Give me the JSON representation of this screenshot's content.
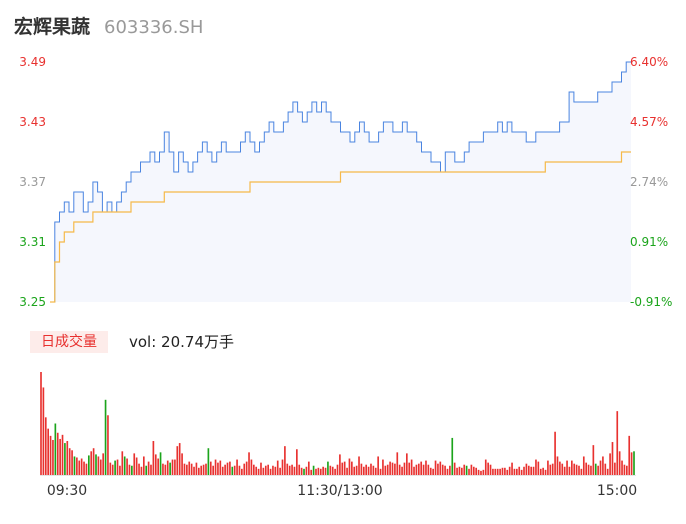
{
  "stock": {
    "name": "宏辉果蔬",
    "code": "603336.SH"
  },
  "volume_panel": {
    "tab_label": "日成交量",
    "readout": "vol: 20.74万手"
  },
  "colors": {
    "price_line": "#4a84e0",
    "avg_line": "#f5b94a",
    "up": "#e8312f",
    "down": "#1ba41b",
    "neutral_axis": "#999999",
    "area_fill": "#f5f7fd"
  },
  "chart_data": [
    {
      "type": "line",
      "ylim": [
        3.25,
        3.49
      ],
      "y_ticks": [
        "3.49",
        "3.43",
        "3.37",
        "3.31",
        "3.25"
      ],
      "y_ticks_right": [
        "6.40%",
        "4.57%",
        "2.74%",
        "0.91%",
        "-0.91%"
      ],
      "y_ticks_right_colors": [
        "up",
        "up",
        "neutral",
        "down",
        "down"
      ],
      "series": [
        {
          "role": "price",
          "values": [
            3.25,
            3.33,
            3.34,
            3.35,
            3.34,
            3.36,
            3.36,
            3.34,
            3.35,
            3.37,
            3.36,
            3.34,
            3.35,
            3.34,
            3.35,
            3.36,
            3.37,
            3.38,
            3.38,
            3.39,
            3.39,
            3.4,
            3.39,
            3.4,
            3.42,
            3.4,
            3.38,
            3.4,
            3.39,
            3.38,
            3.39,
            3.4,
            3.41,
            3.4,
            3.39,
            3.4,
            3.41,
            3.4,
            3.4,
            3.4,
            3.41,
            3.42,
            3.41,
            3.4,
            3.41,
            3.42,
            3.43,
            3.42,
            3.42,
            3.43,
            3.44,
            3.45,
            3.44,
            3.43,
            3.44,
            3.45,
            3.44,
            3.45,
            3.44,
            3.43,
            3.43,
            3.42,
            3.42,
            3.41,
            3.42,
            3.43,
            3.42,
            3.41,
            3.41,
            3.42,
            3.43,
            3.43,
            3.42,
            3.42,
            3.43,
            3.42,
            3.42,
            3.41,
            3.4,
            3.4,
            3.39,
            3.39,
            3.38,
            3.4,
            3.4,
            3.39,
            3.39,
            3.4,
            3.41,
            3.41,
            3.41,
            3.42,
            3.42,
            3.42,
            3.43,
            3.42,
            3.43,
            3.42,
            3.42,
            3.42,
            3.41,
            3.41,
            3.42,
            3.42,
            3.42,
            3.42,
            3.42,
            3.43,
            3.43,
            3.46,
            3.45,
            3.45,
            3.45,
            3.45,
            3.45,
            3.46,
            3.46,
            3.46,
            3.47,
            3.47,
            3.48,
            3.49,
            3.49
          ]
        },
        {
          "role": "average",
          "values": [
            3.25,
            3.29,
            3.31,
            3.32,
            3.32,
            3.33,
            3.33,
            3.33,
            3.33,
            3.34,
            3.34,
            3.34,
            3.34,
            3.34,
            3.34,
            3.34,
            3.34,
            3.35,
            3.35,
            3.35,
            3.35,
            3.35,
            3.35,
            3.35,
            3.36,
            3.36,
            3.36,
            3.36,
            3.36,
            3.36,
            3.36,
            3.36,
            3.36,
            3.36,
            3.36,
            3.36,
            3.36,
            3.36,
            3.36,
            3.36,
            3.36,
            3.36,
            3.37,
            3.37,
            3.37,
            3.37,
            3.37,
            3.37,
            3.37,
            3.37,
            3.37,
            3.37,
            3.37,
            3.37,
            3.37,
            3.37,
            3.37,
            3.37,
            3.37,
            3.37,
            3.37,
            3.38,
            3.38,
            3.38,
            3.38,
            3.38,
            3.38,
            3.38,
            3.38,
            3.38,
            3.38,
            3.38,
            3.38,
            3.38,
            3.38,
            3.38,
            3.38,
            3.38,
            3.38,
            3.38,
            3.38,
            3.38,
            3.38,
            3.38,
            3.38,
            3.38,
            3.38,
            3.38,
            3.38,
            3.38,
            3.38,
            3.38,
            3.38,
            3.38,
            3.38,
            3.38,
            3.38,
            3.38,
            3.38,
            3.38,
            3.38,
            3.38,
            3.38,
            3.38,
            3.39,
            3.39,
            3.39,
            3.39,
            3.39,
            3.39,
            3.39,
            3.39,
            3.39,
            3.39,
            3.39,
            3.39,
            3.39,
            3.39,
            3.39,
            3.39,
            3.4,
            3.4,
            3.4
          ]
        }
      ]
    },
    {
      "type": "bar",
      "x_ticks": [
        "09:30",
        "11:30/13:00",
        "15:00"
      ],
      "values": [
        10.0,
        8.5,
        5.6,
        4.5,
        3.8,
        3.4,
        5.0,
        4.1,
        3.5,
        3.9,
        3.1,
        3.3,
        2.6,
        2.4,
        1.8,
        1.7,
        1.4,
        1.6,
        1.3,
        1.1,
        1.9,
        2.3,
        2.6,
        2.0,
        1.8,
        1.5,
        2.1,
        7.3,
        5.8,
        1.2,
        1.0,
        1.4,
        1.5,
        0.9,
        2.3,
        1.8,
        1.6,
        1.0,
        0.9,
        2.1,
        1.7,
        1.1,
        0.8,
        1.8,
        0.9,
        1.3,
        1.0,
        3.3,
        2.0,
        1.6,
        2.2,
        1.1,
        1.0,
        1.4,
        1.2,
        1.5,
        1.5,
        2.8,
        3.1,
        2.1,
        1.1,
        1.0,
        1.3,
        1.1,
        0.8,
        1.2,
        0.7,
        0.9,
        1.0,
        1.1,
        2.6,
        1.3,
        0.9,
        1.5,
        1.2,
        1.4,
        0.8,
        1.0,
        1.2,
        1.3,
        0.8,
        0.9,
        1.5,
        0.9,
        0.6,
        1.1,
        1.3,
        2.2,
        1.5,
        1.0,
        0.8,
        0.6,
        1.2,
        0.7,
        0.9,
        1.0,
        0.6,
        0.9,
        0.8,
        1.4,
        0.7,
        1.5,
        2.8,
        1.1,
        0.9,
        1.0,
        0.8,
        2.5,
        1.0,
        0.7,
        0.6,
        0.8,
        1.3,
        0.5,
        0.9,
        0.6,
        0.7,
        0.6,
        0.8,
        0.7,
        1.3,
        0.9,
        0.8,
        0.6,
        1.0,
        2.0,
        1.2,
        1.3,
        0.7,
        1.6,
        1.3,
        0.8,
        0.9,
        1.8,
        1.1,
        0.8,
        1.0,
        0.8,
        1.1,
        0.9,
        0.7,
        1.8,
        0.6,
        1.5,
        0.9,
        1.0,
        1.3,
        1.2,
        1.1,
        2.2,
        1.0,
        0.8,
        1.2,
        2.1,
        1.2,
        1.5,
        0.8,
        1.0,
        1.1,
        1.3,
        1.0,
        1.4,
        1.0,
        0.7,
        0.6,
        1.4,
        1.1,
        1.3,
        1.0,
        0.9,
        0.6,
        0.9,
        3.6,
        1.2,
        0.7,
        0.8,
        0.7,
        1.0,
        0.9,
        0.6,
        1.0,
        0.8,
        0.7,
        0.5,
        0.4,
        0.5,
        1.5,
        1.2,
        1.0,
        0.6,
        0.6,
        0.6,
        0.6,
        0.7,
        0.7,
        0.5,
        0.8,
        1.2,
        0.6,
        0.6,
        0.8,
        0.5,
        0.8,
        1.1,
        0.9,
        0.8,
        0.8,
        1.5,
        1.3,
        0.6,
        0.7,
        0.5,
        1.4,
        1.0,
        1.1,
        4.2,
        1.8,
        1.3,
        1.1,
        0.8,
        1.4,
        0.8,
        1.4,
        1.1,
        1.0,
        0.9,
        0.6,
        1.8,
        1.2,
        1.0,
        0.9,
        2.9,
        1.1,
        0.9,
        1.4,
        1.8,
        1.1,
        0.6,
        2.1,
        3.2,
        1.2,
        6.2,
        2.3,
        1.4,
        1.0,
        0.9,
        3.8,
        2.2,
        2.3
      ],
      "up": [
        1,
        1,
        1,
        1,
        1,
        1,
        0,
        1,
        1,
        1,
        0,
        1,
        1,
        1,
        0,
        1,
        1,
        1,
        1,
        1,
        0,
        1,
        1,
        0,
        1,
        1,
        1,
        0,
        1,
        1,
        1,
        0,
        1,
        1,
        1,
        0,
        1,
        1,
        0,
        1,
        1,
        1,
        1,
        1,
        0,
        1,
        1,
        1,
        1,
        1,
        0,
        1,
        1,
        1,
        0,
        1,
        1,
        1,
        1,
        1,
        1,
        1,
        1,
        1,
        1,
        1,
        1,
        1,
        1,
        1,
        0,
        1,
        1,
        1,
        1,
        1,
        1,
        1,
        1,
        1,
        0,
        1,
        1,
        1,
        1,
        1,
        1,
        1,
        1,
        1,
        1,
        1,
        1,
        1,
        1,
        1,
        1,
        1,
        1,
        1,
        1,
        1,
        1,
        1,
        1,
        1,
        1,
        1,
        1,
        1,
        0,
        1,
        1,
        1,
        0,
        1,
        1,
        1,
        1,
        1,
        0,
        1,
        1,
        1,
        1,
        1,
        1,
        1,
        1,
        1,
        1,
        1,
        1,
        1,
        1,
        1,
        1,
        1,
        1,
        1,
        1,
        1,
        1,
        1,
        1,
        1,
        1,
        1,
        1,
        1,
        1,
        1,
        1,
        1,
        1,
        1,
        1,
        1,
        1,
        1,
        1,
        1,
        1,
        1,
        1,
        1,
        1,
        1,
        1,
        1,
        1,
        1,
        0,
        1,
        1,
        1,
        1,
        1,
        0,
        1,
        1,
        1,
        1,
        1,
        1,
        1,
        1,
        1,
        1,
        1,
        1,
        1,
        1,
        1,
        1,
        1,
        1,
        1,
        1,
        1,
        1,
        1,
        1,
        1,
        1,
        1,
        1,
        1,
        1,
        1,
        1,
        1,
        1,
        1,
        1,
        1,
        1,
        1,
        1,
        1,
        1,
        1,
        1,
        1,
        1,
        1,
        1,
        1,
        1,
        1,
        1,
        1,
        0,
        1,
        1,
        1,
        1,
        1,
        1,
        1,
        1,
        1,
        1,
        1,
        1,
        1,
        1,
        1,
        0
      ]
    }
  ]
}
